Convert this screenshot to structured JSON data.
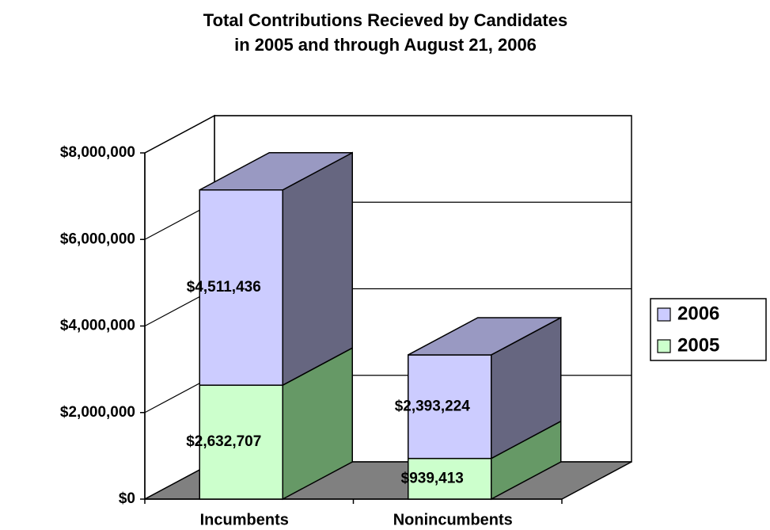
{
  "chart_data": {
    "type": "bar3d_stacked",
    "title": [
      "Total Contributions Recieved by Candidates",
      "in 2005 and through August 21, 2006"
    ],
    "categories": [
      "Incumbents",
      "Nonincumbents"
    ],
    "series": [
      {
        "name": "2005",
        "color": "#ccffcc",
        "side_color": "#669966",
        "top_color": "#99cc99",
        "values": [
          2632707,
          939413
        ],
        "value_labels": [
          "$2,632,707",
          "$939,413"
        ]
      },
      {
        "name": "2006",
        "color": "#ccccff",
        "side_color": "#666680",
        "top_color": "#9999c2",
        "values": [
          4511436,
          2393224
        ],
        "value_labels": [
          "$4,511,436",
          "$2,393,224"
        ]
      }
    ],
    "ylim": [
      0,
      8000000
    ],
    "yticks": [
      {
        "value": 0,
        "label": "$0"
      },
      {
        "value": 2000000,
        "label": "$2,000,000"
      },
      {
        "value": 4000000,
        "label": "$4,000,000"
      },
      {
        "value": 6000000,
        "label": "$6,000,000"
      },
      {
        "value": 8000000,
        "label": "$8,000,000"
      }
    ],
    "grid": true,
    "legend": "right"
  }
}
